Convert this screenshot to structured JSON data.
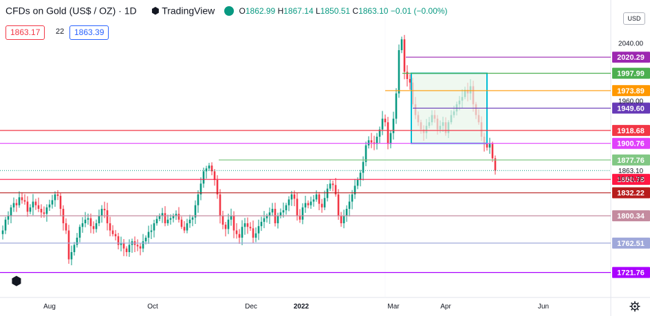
{
  "header": {
    "symbol": "CFDs on Gold (US$ / OZ) · 1D",
    "brand": "TradingView",
    "ohlc": {
      "open_label": "O",
      "open": "1862.99",
      "high_label": "H",
      "high": "1867.14",
      "low_label": "L",
      "low": "1850.51",
      "close_label": "C",
      "close": "1863.10",
      "change": "−0.01 (−0.00%)"
    },
    "sell_price": "1863.17",
    "spread": "22",
    "buy_price": "1863.39"
  },
  "axis": {
    "currency": "USD",
    "price_ticks": [
      "2040.00",
      "1960.00"
    ],
    "countdown": "10:01:35",
    "time_labels": [
      "Aug",
      "Oct",
      "Dec",
      "2022",
      "Mar",
      "Apr",
      "Jun"
    ]
  },
  "colors": {
    "up": "#089981",
    "down": "#f23645",
    "box_border": "#00bcd4",
    "box_fill": "#e8f5e9",
    "background": "#ffffff",
    "grid": "#e0e3eb"
  },
  "icons": [
    "tradingview-logo-icon",
    "settings-gear-icon",
    "visibility-icon"
  ],
  "chart_data": {
    "type": "candlestick",
    "title": "CFDs on Gold (US$ / OZ) · 1D",
    "ylim": [
      1690,
      2090
    ],
    "x_axis_labels": [
      "Aug",
      "Oct",
      "Dec",
      "2022",
      "Mar",
      "Apr",
      "Jun"
    ],
    "last_price": 1863.1,
    "levels": [
      {
        "value": 2020.29,
        "color": "#9c27b0",
        "label": "2020.29"
      },
      {
        "value": 1997.99,
        "color": "#4caf50",
        "label": "1997.99"
      },
      {
        "value": 1973.89,
        "color": "#ff9800",
        "label": "1973.89"
      },
      {
        "value": 1949.6,
        "color": "#673ab7",
        "label": "1949.60"
      },
      {
        "value": 1918.68,
        "color": "#f23645",
        "label": "1918.68"
      },
      {
        "value": 1900.76,
        "color": "#e040fb",
        "label": "1900.76"
      },
      {
        "value": 1877.76,
        "color": "#81c784",
        "label": "1877.76"
      },
      {
        "value": 1850.78,
        "color": "#ff1744",
        "label": "1850.78"
      },
      {
        "value": 1832.22,
        "color": "#b71c1c",
        "label": "1832.22"
      },
      {
        "value": 1800.34,
        "color": "#c48b9f",
        "label": "1800.34"
      },
      {
        "value": 1762.51,
        "color": "#9fa8da",
        "label": "1762.51"
      },
      {
        "value": 1721.76,
        "color": "#aa00ff",
        "label": "1721.76"
      }
    ],
    "range_box": {
      "from_date": "Mar 2022",
      "to_date": "Apr 2022",
      "high": 1997.99,
      "low": 1900.76
    },
    "closes": [
      1780,
      1795,
      1800,
      1812,
      1818,
      1815,
      1826,
      1822,
      1820,
      1806,
      1812,
      1820,
      1815,
      1810,
      1805,
      1803,
      1812,
      1816,
      1822,
      1830,
      1828,
      1810,
      1790,
      1780,
      1740,
      1750,
      1760,
      1770,
      1785,
      1790,
      1795,
      1797,
      1786,
      1782,
      1790,
      1800,
      1810,
      1808,
      1790,
      1780,
      1775,
      1772,
      1760,
      1763,
      1755,
      1750,
      1760,
      1765,
      1760,
      1758,
      1755,
      1765,
      1770,
      1778,
      1780,
      1790,
      1796,
      1800,
      1804,
      1790,
      1795,
      1797,
      1800,
      1803,
      1795,
      1785,
      1780,
      1790,
      1795,
      1798,
      1815,
      1830,
      1845,
      1862,
      1866,
      1870,
      1862,
      1850,
      1830,
      1800,
      1788,
      1782,
      1795,
      1800,
      1780,
      1775,
      1770,
      1785,
      1790,
      1785,
      1783,
      1770,
      1776,
      1786,
      1792,
      1797,
      1800,
      1805,
      1810,
      1790,
      1800,
      1805,
      1808,
      1815,
      1823,
      1830,
      1824,
      1800,
      1795,
      1812,
      1818,
      1815,
      1820,
      1823,
      1830,
      1817,
      1812,
      1825,
      1838,
      1845,
      1843,
      1830,
      1800,
      1790,
      1800,
      1810,
      1820,
      1830,
      1842,
      1850,
      1860,
      1875,
      1898,
      1905,
      1902,
      1900,
      1910,
      1920,
      1935,
      1930,
      1900,
      1915,
      1935,
      1970,
      2030,
      2045,
      2000,
      1990,
      1985,
      1955,
      1940,
      1930,
      1920,
      1915,
      1925,
      1930,
      1940,
      1935,
      1920,
      1925,
      1930,
      1915,
      1930,
      1940,
      1945,
      1955,
      1960,
      1965,
      1975,
      1970,
      1980,
      1955,
      1940,
      1930,
      1910,
      1900,
      1895,
      1900,
      1880,
      1863
    ]
  }
}
